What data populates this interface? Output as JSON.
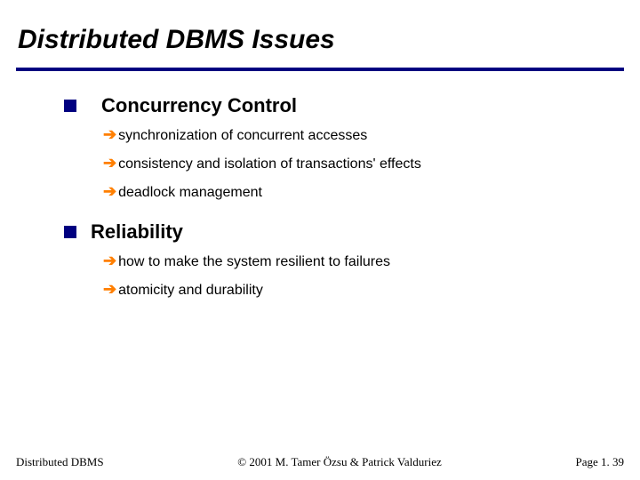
{
  "title": "Distributed DBMS Issues",
  "colors": {
    "rule": "#000080",
    "square_bullet": "#000080",
    "arrow": "#ff7f00",
    "text": "#000000",
    "background": "#ffffff"
  },
  "typography": {
    "title_fontsize_pt": 30,
    "title_weight": "bold",
    "title_style": "italic",
    "topic_fontsize_pt": 22,
    "topic_weight": "bold",
    "subitem_fontsize_pt": 16,
    "footer_fontsize_pt": 13,
    "footer_family": "Times New Roman"
  },
  "topics": [
    {
      "label": "Concurrency Control",
      "items": [
        "synchronization of concurrent accesses",
        "consistency and isolation of transactions' effects",
        "deadlock management"
      ]
    },
    {
      "label": "Reliability",
      "items": [
        "how to make the system resilient to failures",
        "atomicity and durability"
      ]
    }
  ],
  "footer": {
    "left": "Distributed DBMS",
    "center": "© 2001 M. Tamer Özsu & Patrick Valduriez",
    "right": "Page 1. 39"
  },
  "arrow_glyph": "➔"
}
